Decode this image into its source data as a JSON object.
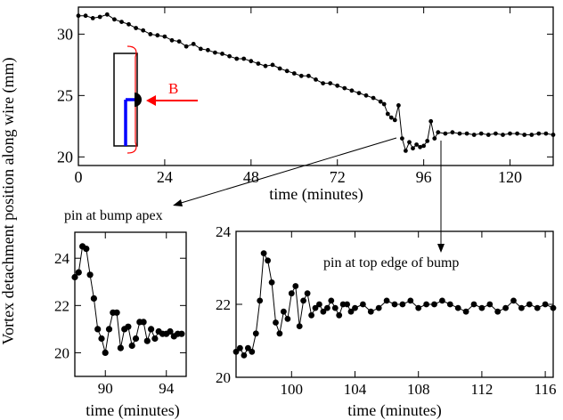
{
  "ylabel_shared": "Vortex detachment position along wire (mm)",
  "annotations": {
    "apex": "pin at bump apex",
    "top_edge": "pin at top edge of bump",
    "field_label": "B"
  },
  "colors": {
    "wire": "#0000ff",
    "arrow": "#ff0000",
    "trace": "#000000"
  },
  "chart_data": [
    {
      "id": "main",
      "type": "line",
      "xlabel": "time (minutes)",
      "ylabel": "",
      "xlim": [
        0,
        132
      ],
      "ylim": [
        19.3,
        32.2
      ],
      "xticks": [
        0,
        24,
        48,
        72,
        96,
        120
      ],
      "yticks": [
        20,
        25,
        30
      ],
      "x": [
        0,
        2,
        4,
        6,
        8,
        10,
        12,
        14,
        16,
        18,
        20,
        22,
        24,
        26,
        28,
        30,
        32,
        34,
        36,
        38,
        40,
        42,
        44,
        46,
        48,
        50,
        52,
        54,
        56,
        58,
        60,
        62,
        64,
        66,
        68,
        70,
        72,
        74,
        76,
        78,
        80,
        82,
        84,
        85,
        86,
        87,
        88,
        89,
        90,
        91,
        92,
        93,
        94,
        95,
        96,
        97,
        98,
        99,
        100,
        102,
        104,
        106,
        108,
        110,
        112,
        114,
        116,
        118,
        120,
        122,
        124,
        126,
        128,
        130,
        132
      ],
      "y": [
        31.5,
        31.5,
        31.3,
        31.4,
        31.6,
        31.2,
        31.0,
        30.8,
        30.5,
        30.3,
        30.0,
        29.9,
        29.8,
        29.5,
        29.4,
        29.0,
        29.2,
        28.8,
        28.7,
        28.5,
        28.4,
        28.2,
        28.0,
        28.0,
        27.8,
        27.6,
        27.4,
        27.5,
        27.2,
        27.0,
        26.8,
        26.6,
        26.6,
        26.3,
        26.0,
        26.0,
        25.8,
        25.6,
        25.4,
        25.2,
        25.0,
        24.8,
        24.5,
        24.3,
        23.5,
        23.2,
        23.0,
        24.2,
        21.5,
        20.5,
        21.2,
        20.7,
        21.0,
        20.8,
        20.9,
        21.3,
        22.9,
        21.5,
        22.0,
        21.9,
        22.0,
        21.9,
        21.9,
        21.8,
        21.9,
        21.8,
        21.9,
        21.8,
        21.9,
        21.9,
        21.8,
        21.8,
        21.9,
        21.9,
        21.8
      ]
    },
    {
      "id": "apex",
      "type": "line",
      "xlabel": "time (minutes)",
      "ylabel": "",
      "xlim": [
        88,
        95.3
      ],
      "ylim": [
        19.0,
        25.1
      ],
      "xticks": [
        90,
        94
      ],
      "yticks": [
        20,
        22,
        24
      ],
      "x": [
        88.0,
        88.25,
        88.5,
        88.75,
        89.0,
        89.25,
        89.5,
        89.75,
        90.0,
        90.25,
        90.5,
        90.75,
        91.0,
        91.25,
        91.5,
        91.75,
        92.0,
        92.25,
        92.5,
        92.75,
        93.0,
        93.25,
        93.5,
        93.75,
        94.0,
        94.25,
        94.5,
        94.75,
        95.0
      ],
      "y": [
        23.2,
        23.4,
        24.5,
        24.4,
        23.3,
        22.3,
        21.0,
        20.6,
        20.0,
        21.0,
        21.7,
        21.7,
        20.2,
        21.0,
        21.1,
        20.3,
        20.6,
        21.3,
        21.3,
        20.5,
        21.0,
        20.6,
        20.9,
        20.8,
        20.8,
        20.9,
        20.7,
        20.8,
        20.8
      ]
    },
    {
      "id": "top",
      "type": "line",
      "xlabel": "time (minutes)",
      "ylabel": "",
      "xlim": [
        96.5,
        116.5
      ],
      "ylim": [
        20.0,
        24.0
      ],
      "xticks": [
        100,
        104,
        108,
        112,
        116
      ],
      "yticks": [
        20,
        22,
        24
      ],
      "x": [
        96.5,
        96.75,
        97.0,
        97.25,
        97.5,
        97.75,
        98.0,
        98.25,
        98.5,
        98.75,
        99.0,
        99.25,
        99.5,
        99.75,
        100.0,
        100.25,
        100.5,
        100.75,
        101.0,
        101.25,
        101.5,
        101.75,
        102.0,
        102.25,
        102.5,
        102.75,
        103.0,
        103.25,
        103.5,
        103.75,
        104.0,
        104.5,
        105.0,
        105.5,
        106.0,
        106.5,
        107.0,
        107.5,
        108.0,
        108.5,
        109.0,
        109.5,
        110.0,
        110.5,
        111.0,
        111.5,
        112.0,
        112.5,
        113.0,
        113.5,
        114.0,
        114.5,
        115.0,
        115.5,
        116.0,
        116.5
      ],
      "y": [
        20.7,
        20.8,
        20.6,
        20.8,
        20.7,
        21.2,
        22.1,
        23.4,
        23.2,
        22.6,
        21.5,
        21.2,
        21.8,
        21.6,
        22.3,
        22.5,
        21.4,
        22.1,
        22.3,
        21.7,
        21.9,
        22.0,
        21.8,
        21.9,
        22.1,
        21.9,
        21.7,
        22.0,
        22.0,
        21.8,
        21.9,
        22.0,
        21.8,
        21.9,
        22.1,
        22.0,
        22.0,
        22.1,
        21.9,
        22.0,
        22.0,
        22.1,
        22.0,
        21.9,
        21.8,
        22.0,
        21.9,
        22.0,
        21.8,
        21.9,
        22.1,
        21.9,
        22.0,
        21.9,
        22.0,
        21.9
      ]
    }
  ]
}
